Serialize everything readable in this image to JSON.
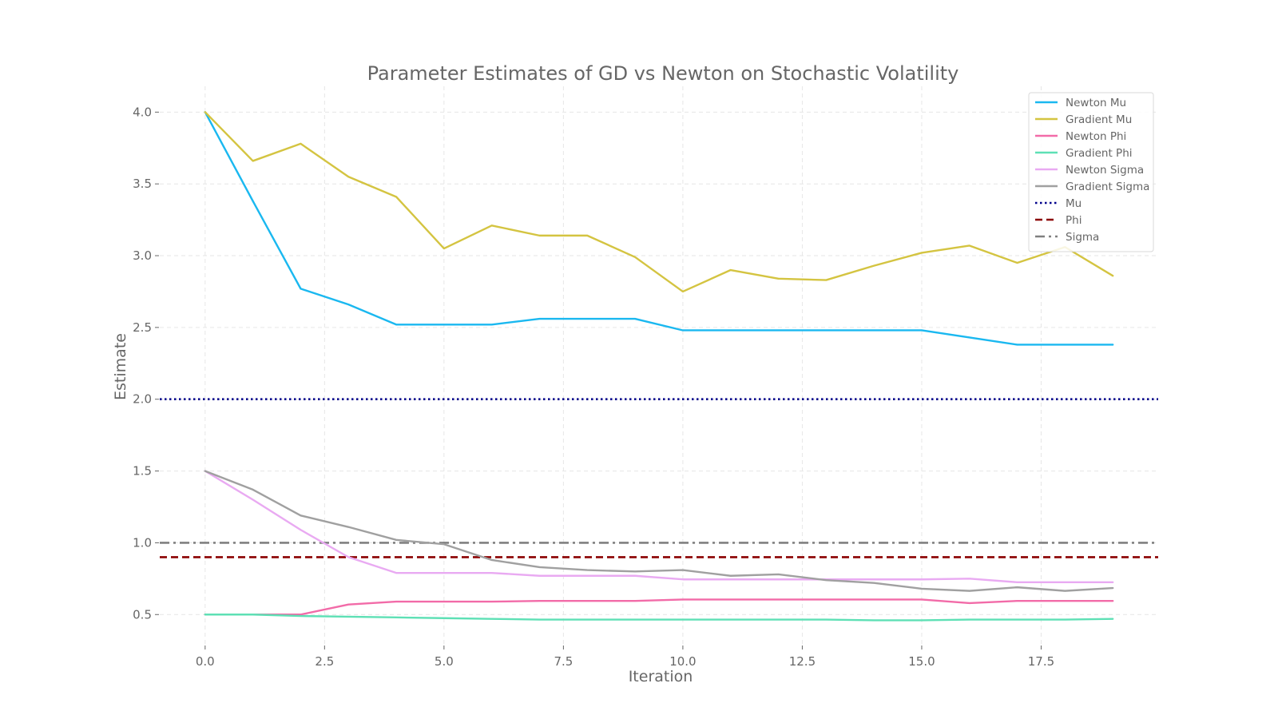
{
  "chart_data": {
    "type": "line",
    "title": "Parameter Estimates of GD vs Newton on Stochastic Volatility",
    "xlabel": "Iteration",
    "ylabel": "Estimate",
    "xlim": [
      -0.95,
      19.95
    ],
    "ylim": [
      0.29,
      4.18
    ],
    "x_ticks": [
      0.0,
      2.5,
      5.0,
      7.5,
      10.0,
      12.5,
      15.0,
      17.5
    ],
    "x_tick_labels": [
      "0.0",
      "2.5",
      "5.0",
      "7.5",
      "10.0",
      "12.5",
      "15.0",
      "17.5"
    ],
    "y_ticks": [
      0.5,
      1.0,
      1.5,
      2.0,
      2.5,
      3.0,
      3.5,
      4.0
    ],
    "y_tick_labels": [
      "0.5",
      "1.0",
      "1.5",
      "2.0",
      "2.5",
      "3.0",
      "3.5",
      "4.0"
    ],
    "grid": true,
    "legend_position": "top-right",
    "x": [
      0,
      1,
      2,
      3,
      4,
      5,
      6,
      7,
      8,
      9,
      10,
      11,
      12,
      13,
      14,
      15,
      16,
      17,
      18,
      19
    ],
    "series": [
      {
        "name": "Newton Mu",
        "color": "#1ab8f0",
        "style": "solid",
        "values": [
          4.0,
          3.38,
          2.77,
          2.66,
          2.52,
          2.52,
          2.52,
          2.56,
          2.56,
          2.56,
          2.48,
          2.48,
          2.48,
          2.48,
          2.48,
          2.48,
          2.43,
          2.38,
          2.38,
          2.38
        ]
      },
      {
        "name": "Gradient Mu",
        "color": "#d4c441",
        "style": "solid",
        "values": [
          4.0,
          3.66,
          3.78,
          3.55,
          3.41,
          3.05,
          3.21,
          3.14,
          3.14,
          2.99,
          2.75,
          2.9,
          2.84,
          2.83,
          2.93,
          3.02,
          3.07,
          2.95,
          3.06,
          2.86
        ]
      },
      {
        "name": "Newton Phi",
        "color": "#f26ba8",
        "style": "solid",
        "values": [
          0.5,
          0.5,
          0.5,
          0.57,
          0.59,
          0.59,
          0.59,
          0.595,
          0.595,
          0.595,
          0.605,
          0.605,
          0.605,
          0.605,
          0.605,
          0.605,
          0.58,
          0.595,
          0.595,
          0.595
        ]
      },
      {
        "name": "Gradient Phi",
        "color": "#5ee0b5",
        "style": "solid",
        "values": [
          0.5,
          0.5,
          0.49,
          0.485,
          0.48,
          0.475,
          0.47,
          0.465,
          0.465,
          0.465,
          0.465,
          0.465,
          0.465,
          0.465,
          0.46,
          0.46,
          0.465,
          0.465,
          0.465,
          0.47
        ]
      },
      {
        "name": "Newton Sigma",
        "color": "#e9aaf2",
        "style": "solid",
        "values": [
          1.5,
          1.3,
          1.09,
          0.9,
          0.79,
          0.79,
          0.79,
          0.77,
          0.77,
          0.77,
          0.745,
          0.745,
          0.745,
          0.745,
          0.745,
          0.745,
          0.75,
          0.725,
          0.725,
          0.725
        ]
      },
      {
        "name": "Gradient Sigma",
        "color": "#a0a0a0",
        "style": "solid",
        "values": [
          1.5,
          1.37,
          1.19,
          1.11,
          1.02,
          0.99,
          0.88,
          0.83,
          0.81,
          0.8,
          0.81,
          0.77,
          0.78,
          0.74,
          0.72,
          0.68,
          0.665,
          0.69,
          0.665,
          0.685
        ]
      }
    ],
    "reference_lines": [
      {
        "name": "Mu",
        "value": 2.0,
        "color": "#00008b",
        "style": "dotted"
      },
      {
        "name": "Phi",
        "value": 0.9,
        "color": "#8b0000",
        "style": "dashed"
      },
      {
        "name": "Sigma",
        "value": 1.0,
        "color": "#808080",
        "style": "dashdot"
      }
    ]
  }
}
